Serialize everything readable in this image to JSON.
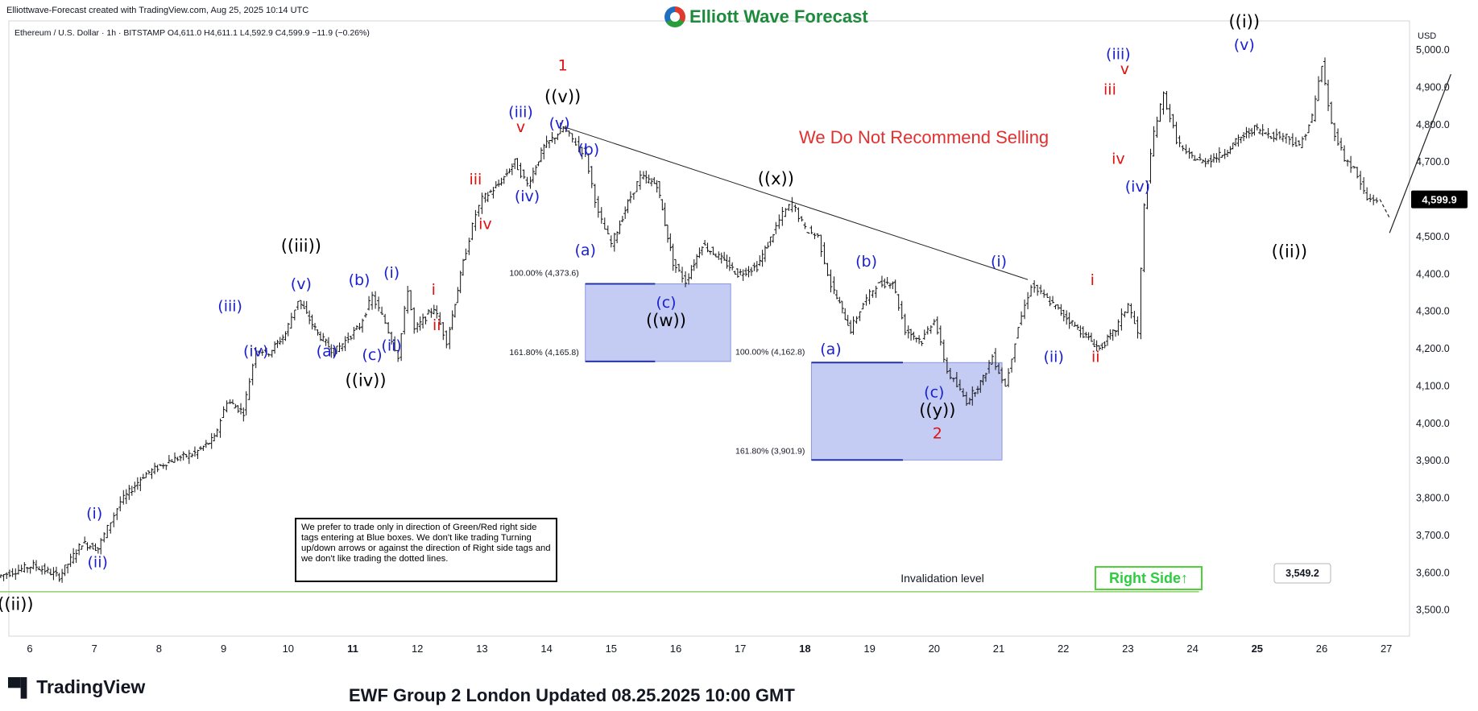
{
  "header": {
    "credit": "Elliottwave-Forecast created with TradingView.com, Aug 25, 2025 10:14 UTC",
    "symbol_line": "Ethereum / U.S. Dollar · 1h · BITSTAMP  O4,611.0  H4,611.1  L4,592.9  C4,599.9  −11.9 (−0.26%)",
    "brand": "Elliott Wave Forecast"
  },
  "footer": {
    "update": "EWF Group 2 London Updated 08.25.2025 10:00 GMT",
    "tv_logo": "TradingView"
  },
  "note": "We prefer to trade only in direction of Green/Red right side tags entering at Blue boxes. We don't like trading Turning up/down arrows or against the direction of Right side tags and we don't like trading the dotted lines.",
  "right_side_tag": "Right Side",
  "not_recommend": "We Do Not Recommend Selling",
  "invalidation_label": "Invalidation level",
  "colors": {
    "blue": "#1a1fd0",
    "red": "#e01010",
    "black": "#000000",
    "box_fill": "#c4ccf3",
    "box_edge": "#2233aa",
    "green_line": "#8fd16a",
    "right_side_green": "#2ecc40"
  },
  "chart_data": {
    "type": "candlestick",
    "currency": "USD",
    "ylim": [
      3450,
      5085
    ],
    "price_ticks": [
      "5,000.0",
      "4,900.0",
      "4,800.0",
      "4,700.0",
      "4,600.0",
      "4,500.0",
      "4,400.0",
      "4,300.0",
      "4,200.0",
      "4,100.0",
      "4,000.0",
      "3,900.0",
      "3,800.0",
      "3,700.0",
      "3,600.0",
      "3,500.0"
    ],
    "x_ticks": [
      {
        "label": "6",
        "day": 6
      },
      {
        "label": "7",
        "day": 7
      },
      {
        "label": "8",
        "day": 8
      },
      {
        "label": "9",
        "day": 9
      },
      {
        "label": "10",
        "day": 10
      },
      {
        "label": "11",
        "day": 11,
        "bold": true
      },
      {
        "label": "12",
        "day": 12
      },
      {
        "label": "13",
        "day": 13
      },
      {
        "label": "14",
        "day": 14
      },
      {
        "label": "15",
        "day": 15
      },
      {
        "label": "16",
        "day": 16
      },
      {
        "label": "17",
        "day": 17
      },
      {
        "label": "18",
        "day": 18,
        "bold": true
      },
      {
        "label": "19",
        "day": 19
      },
      {
        "label": "20",
        "day": 20
      },
      {
        "label": "21",
        "day": 21
      },
      {
        "label": "22",
        "day": 22
      },
      {
        "label": "23",
        "day": 23
      },
      {
        "label": "24",
        "day": 24
      },
      {
        "label": "25",
        "day": 25,
        "bold": true
      },
      {
        "label": "26",
        "day": 26
      },
      {
        "label": "27",
        "day": 27
      }
    ],
    "last_price": "4,599.9",
    "invalidation_price": "3,549.2",
    "path": [
      [
        5.55,
        3590
      ],
      [
        6.1,
        3620
      ],
      [
        6.5,
        3590
      ],
      [
        6.85,
        3680
      ],
      [
        7.1,
        3665
      ],
      [
        7.25,
        3720
      ],
      [
        7.45,
        3790
      ],
      [
        7.8,
        3860
      ],
      [
        8.2,
        3900
      ],
      [
        8.6,
        3920
      ],
      [
        8.9,
        3960
      ],
      [
        9.1,
        4060
      ],
      [
        9.35,
        4030
      ],
      [
        9.55,
        4200
      ],
      [
        9.75,
        4190
      ],
      [
        10.0,
        4240
      ],
      [
        10.2,
        4330
      ],
      [
        10.5,
        4240
      ],
      [
        10.75,
        4190
      ],
      [
        11.15,
        4260
      ],
      [
        11.35,
        4340
      ],
      [
        11.55,
        4270
      ],
      [
        11.75,
        4180
      ],
      [
        11.9,
        4360
      ],
      [
        12.0,
        4250
      ],
      [
        12.3,
        4310
      ],
      [
        12.5,
        4220
      ],
      [
        12.75,
        4430
      ],
      [
        12.95,
        4560
      ],
      [
        13.05,
        4600
      ],
      [
        13.3,
        4640
      ],
      [
        13.55,
        4700
      ],
      [
        13.75,
        4640
      ],
      [
        14.0,
        4740
      ],
      [
        14.3,
        4790
      ],
      [
        14.45,
        4760
      ],
      [
        14.65,
        4720
      ],
      [
        14.85,
        4560
      ],
      [
        15.05,
        4480
      ],
      [
        15.3,
        4590
      ],
      [
        15.5,
        4660
      ],
      [
        15.75,
        4640
      ],
      [
        16.0,
        4430
      ],
      [
        16.2,
        4380
      ],
      [
        16.45,
        4480
      ],
      [
        16.75,
        4440
      ],
      [
        17.0,
        4400
      ],
      [
        17.3,
        4420
      ],
      [
        17.55,
        4510
      ],
      [
        17.7,
        4560
      ],
      [
        17.85,
        4590
      ],
      [
        18.05,
        4520
      ],
      [
        18.25,
        4500
      ],
      [
        18.45,
        4370
      ],
      [
        18.75,
        4250
      ],
      [
        18.95,
        4320
      ],
      [
        19.15,
        4370
      ],
      [
        19.4,
        4380
      ],
      [
        19.6,
        4250
      ],
      [
        19.85,
        4220
      ],
      [
        20.05,
        4280
      ],
      [
        20.25,
        4140
      ],
      [
        20.4,
        4100
      ],
      [
        20.55,
        4060
      ],
      [
        20.8,
        4120
      ],
      [
        20.95,
        4180
      ],
      [
        21.15,
        4100
      ],
      [
        21.35,
        4260
      ],
      [
        21.55,
        4370
      ],
      [
        21.75,
        4340
      ],
      [
        22.05,
        4290
      ],
      [
        22.35,
        4240
      ],
      [
        22.6,
        4200
      ],
      [
        22.85,
        4250
      ],
      [
        23.05,
        4320
      ],
      [
        23.2,
        4240
      ],
      [
        23.3,
        4580
      ],
      [
        23.45,
        4780
      ],
      [
        23.6,
        4880
      ],
      [
        23.8,
        4760
      ],
      [
        23.95,
        4720
      ],
      [
        24.2,
        4700
      ],
      [
        24.5,
        4720
      ],
      [
        24.75,
        4760
      ],
      [
        25.0,
        4790
      ],
      [
        25.3,
        4770
      ],
      [
        25.5,
        4770
      ],
      [
        25.7,
        4740
      ],
      [
        25.9,
        4820
      ],
      [
        26.05,
        4960
      ],
      [
        26.2,
        4800
      ],
      [
        26.4,
        4710
      ],
      [
        26.55,
        4680
      ],
      [
        26.75,
        4600
      ],
      [
        26.9,
        4599.9
      ]
    ],
    "trendline": [
      [
        14.25,
        4795
      ],
      [
        21.45,
        4385
      ]
    ],
    "projection": {
      "dashed": [
        [
          26.9,
          4600
        ],
        [
          27.05,
          4550
        ]
      ],
      "solid": [
        [
          27.05,
          4510
        ],
        [
          28.0,
          4935
        ]
      ]
    },
    "fib_boxes": [
      {
        "x0": 14.6,
        "x1": 16.85,
        "top": 4373.6,
        "bottom": 4165.8,
        "label_top": "100.00% (4,373.6)",
        "label_bottom": "161.80% (4,165.8)"
      },
      {
        "x0": 18.1,
        "x1": 21.05,
        "top": 4162.8,
        "bottom": 3901.9,
        "label_top": "100.00% (4,162.8)",
        "label_bottom": "161.80% (3,901.9)"
      }
    ],
    "invalidation": {
      "x0": 5.5,
      "x1": 24.1,
      "price": 3549.2
    },
    "wave_labels": [
      {
        "t": "((ii))",
        "d": 5.78,
        "p": 3500,
        "c": "black"
      },
      {
        "t": "(i)",
        "d": 7.0,
        "p": 3745,
        "c": "blue"
      },
      {
        "t": "(ii)",
        "d": 7.05,
        "p": 3615,
        "c": "blue"
      },
      {
        "t": "(iii)",
        "d": 9.1,
        "p": 4300,
        "c": "blue"
      },
      {
        "t": "(iv)",
        "d": 9.5,
        "p": 4180,
        "c": "blue"
      },
      {
        "t": "((iii))",
        "d": 10.2,
        "p": 4460,
        "c": "black"
      },
      {
        "t": "(v)",
        "d": 10.2,
        "p": 4360,
        "c": "blue"
      },
      {
        "t": "(a)",
        "d": 10.6,
        "p": 4180,
        "c": "blue"
      },
      {
        "t": "(b)",
        "d": 11.1,
        "p": 4370,
        "c": "blue"
      },
      {
        "t": "(i)",
        "d": 11.6,
        "p": 4390,
        "c": "blue"
      },
      {
        "t": "(c)",
        "d": 11.3,
        "p": 4170,
        "c": "blue"
      },
      {
        "t": "(ii)",
        "d": 11.6,
        "p": 4195,
        "c": "blue"
      },
      {
        "t": "((iv))",
        "d": 11.2,
        "p": 4100,
        "c": "black"
      },
      {
        "t": "i",
        "d": 12.25,
        "p": 4345,
        "c": "red"
      },
      {
        "t": "ii",
        "d": 12.3,
        "p": 4250,
        "c": "red"
      },
      {
        "t": "iii",
        "d": 12.9,
        "p": 4640,
        "c": "red"
      },
      {
        "t": "iv",
        "d": 13.05,
        "p": 4520,
        "c": "red"
      },
      {
        "t": "(iii)",
        "d": 13.6,
        "p": 4820,
        "c": "blue"
      },
      {
        "t": "v",
        "d": 13.6,
        "p": 4780,
        "c": "red"
      },
      {
        "t": "(iv)",
        "d": 13.7,
        "p": 4595,
        "c": "blue"
      },
      {
        "t": "1",
        "d": 14.25,
        "p": 4945,
        "c": "red"
      },
      {
        "t": "((v))",
        "d": 14.25,
        "p": 4860,
        "c": "black"
      },
      {
        "t": "(v)",
        "d": 14.2,
        "p": 4790,
        "c": "blue"
      },
      {
        "t": "(b)",
        "d": 14.65,
        "p": 4720,
        "c": "blue"
      },
      {
        "t": "(a)",
        "d": 14.6,
        "p": 4450,
        "c": "blue"
      },
      {
        "t": "(c)",
        "d": 15.85,
        "p": 4310,
        "c": "blue"
      },
      {
        "t": "((w))",
        "d": 15.85,
        "p": 4260,
        "c": "black"
      },
      {
        "t": "((x))",
        "d": 17.55,
        "p": 4640,
        "c": "black"
      },
      {
        "t": "(b)",
        "d": 18.95,
        "p": 4420,
        "c": "blue"
      },
      {
        "t": "(a)",
        "d": 18.4,
        "p": 4185,
        "c": "blue"
      },
      {
        "t": "(c)",
        "d": 20.0,
        "p": 4070,
        "c": "blue"
      },
      {
        "t": "((y))",
        "d": 20.05,
        "p": 4020,
        "c": "black"
      },
      {
        "t": "2",
        "d": 20.05,
        "p": 3960,
        "c": "red"
      },
      {
        "t": "(i)",
        "d": 21.0,
        "p": 4420,
        "c": "blue"
      },
      {
        "t": "(ii)",
        "d": 21.85,
        "p": 4165,
        "c": "blue"
      },
      {
        "t": "i",
        "d": 22.45,
        "p": 4370,
        "c": "red"
      },
      {
        "t": "ii",
        "d": 22.5,
        "p": 4165,
        "c": "red"
      },
      {
        "t": "(iii)",
        "d": 22.85,
        "p": 4975,
        "c": "blue"
      },
      {
        "t": "v",
        "d": 22.95,
        "p": 4935,
        "c": "red"
      },
      {
        "t": "iii",
        "d": 22.72,
        "p": 4880,
        "c": "red"
      },
      {
        "t": "iv",
        "d": 22.85,
        "p": 4695,
        "c": "red"
      },
      {
        "t": "(iv)",
        "d": 23.15,
        "p": 4620,
        "c": "blue"
      },
      {
        "t": "((i))",
        "d": 24.8,
        "p": 5060,
        "c": "black"
      },
      {
        "t": "(v)",
        "d": 24.8,
        "p": 5000,
        "c": "blue"
      },
      {
        "t": "((ii))",
        "d": 25.5,
        "p": 4445,
        "c": "black"
      }
    ]
  }
}
